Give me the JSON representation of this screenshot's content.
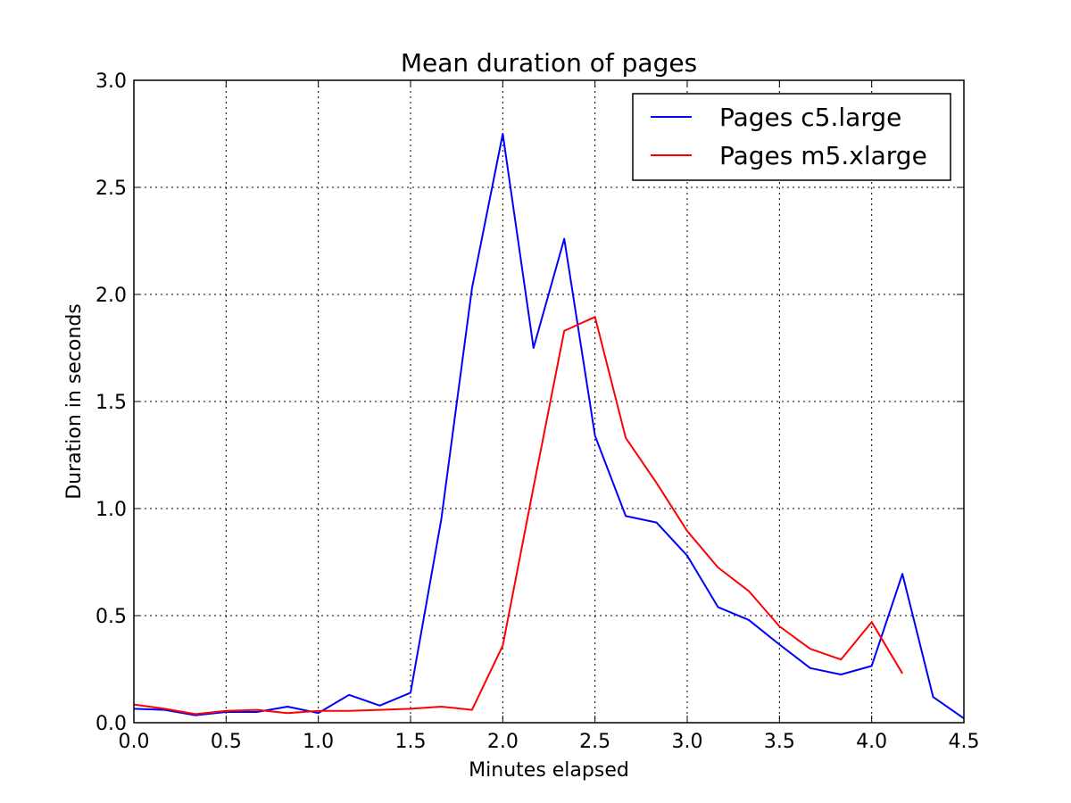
{
  "chart_data": {
    "type": "line",
    "title": "Mean duration of pages",
    "xlabel": "Minutes elapsed",
    "ylabel": "Duration in seconds",
    "xlim": [
      0.0,
      4.5
    ],
    "ylim": [
      0.0,
      3.0
    ],
    "x_ticks": [
      "0.0",
      "0.5",
      "1.0",
      "1.5",
      "2.0",
      "2.5",
      "3.0",
      "3.5",
      "4.0",
      "4.5"
    ],
    "y_ticks": [
      "0.0",
      "0.5",
      "1.0",
      "1.5",
      "2.0",
      "2.5",
      "3.0"
    ],
    "grid": true,
    "legend_position": "top-right",
    "series": [
      {
        "name": "Pages c5.large",
        "color": "#0000ff",
        "x": [
          0.0,
          0.1667,
          0.3333,
          0.5,
          0.6667,
          0.8333,
          1.0,
          1.1667,
          1.3333,
          1.5,
          1.6667,
          1.8333,
          2.0,
          2.1667,
          2.3333,
          2.5,
          2.6667,
          2.8333,
          3.0,
          3.1667,
          3.3333,
          3.5,
          3.6667,
          3.8333,
          4.0,
          4.1667,
          4.3333,
          4.5
        ],
        "y": [
          0.065,
          0.06,
          0.035,
          0.05,
          0.05,
          0.075,
          0.045,
          0.13,
          0.08,
          0.14,
          0.95,
          2.03,
          2.75,
          1.75,
          2.26,
          1.34,
          0.965,
          0.935,
          0.78,
          0.54,
          0.48,
          0.365,
          0.255,
          0.225,
          0.265,
          0.695,
          0.12,
          0.02
        ]
      },
      {
        "name": "Pages m5.xlarge",
        "color": "#ff0000",
        "x": [
          0.0,
          0.1667,
          0.3333,
          0.5,
          0.6667,
          0.8333,
          1.0,
          1.1667,
          1.3333,
          1.5,
          1.6667,
          1.8333,
          2.0,
          2.1667,
          2.3333,
          2.5,
          2.6667,
          2.8333,
          3.0,
          3.1667,
          3.3333,
          3.5,
          3.6667,
          3.8333,
          4.0,
          4.1667
        ],
        "y": [
          0.085,
          0.065,
          0.04,
          0.055,
          0.06,
          0.045,
          0.055,
          0.055,
          0.06,
          0.065,
          0.075,
          0.06,
          0.36,
          1.1,
          1.83,
          1.895,
          1.33,
          1.12,
          0.895,
          0.725,
          0.615,
          0.45,
          0.345,
          0.295,
          0.47,
          0.23
        ]
      }
    ]
  }
}
